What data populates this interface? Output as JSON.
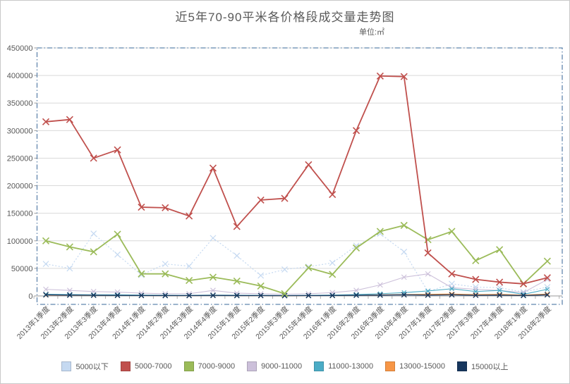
{
  "title": "近5年70-90平米各价格段成交量走势图",
  "subtitle": "单位:㎡",
  "colors": {
    "title_text": "#595959",
    "axis_text": "#595959",
    "gridline": "#d9d9d9",
    "axis_line": "#9a9a9a",
    "plot_border": "#6286ad",
    "background": "#ffffff"
  },
  "chart_data": {
    "type": "line",
    "marker": "x",
    "grid": "horizontal",
    "legend_position": "bottom",
    "ylim": [
      0,
      450000
    ],
    "y_ticks": [
      0,
      50000,
      100000,
      150000,
      200000,
      250000,
      300000,
      350000,
      400000,
      450000
    ],
    "categories": [
      "2013年1季度",
      "2013年2季度",
      "2013年3季度",
      "2013年4季度",
      "2014年1季度",
      "2014年2季度",
      "2014年3季度",
      "2014年4季度",
      "2015年1季度",
      "2015年2季度",
      "2015年3季度",
      "2015年4季度",
      "2016年1季度",
      "2016年2季度",
      "2016年3季度",
      "2016年4季度",
      "2017年1季度",
      "2017年2季度",
      "2017年3季度",
      "2017年4季度",
      "2018年1季度",
      "2018年2季度"
    ],
    "series": [
      {
        "name": "5000以下",
        "color": "#c5d9f1",
        "dash": "2 2.5",
        "line_width": 1.2,
        "marker_size": 4,
        "marker_width": 1.2,
        "values": [
          58000,
          50000,
          113000,
          75000,
          38000,
          58000,
          54000,
          105000,
          73000,
          37000,
          48000,
          53000,
          60000,
          91000,
          113000,
          80000,
          8000,
          22000,
          16000,
          15000,
          7000,
          16000
        ]
      },
      {
        "name": "5000-7000",
        "color": "#c0504d",
        "dash": "",
        "line_width": 1.8,
        "marker_size": 4.5,
        "marker_width": 1.6,
        "values": [
          316000,
          320000,
          250000,
          265000,
          161000,
          160000,
          145000,
          232000,
          126000,
          174000,
          177000,
          238000,
          184000,
          300000,
          399000,
          398000,
          78000,
          40000,
          30000,
          25000,
          22000,
          33000
        ]
      },
      {
        "name": "7000-9000",
        "color": "#9bbb59",
        "dash": "",
        "line_width": 1.8,
        "marker_size": 4.5,
        "marker_width": 1.6,
        "values": [
          100000,
          89000,
          80000,
          112000,
          40000,
          40000,
          28000,
          34000,
          27000,
          18000,
          4000,
          51000,
          39000,
          87000,
          117000,
          128000,
          102000,
          117000,
          64000,
          84000,
          22000,
          63000
        ]
      },
      {
        "name": "9000-11000",
        "color": "#ccc0da",
        "dash": "",
        "line_width": 1.1,
        "marker_size": 3.5,
        "marker_width": 1.1,
        "values": [
          12000,
          10000,
          8000,
          7000,
          5000,
          4000,
          4000,
          10000,
          5000,
          4000,
          3000,
          4000,
          6000,
          10000,
          20000,
          34000,
          40000,
          15000,
          12000,
          10000,
          6000,
          30000
        ]
      },
      {
        "name": "11000-13000",
        "color": "#4bacc6",
        "dash": "",
        "line_width": 1.1,
        "marker_size": 3,
        "marker_width": 1.1,
        "values": [
          3000,
          2500,
          2000,
          2000,
          1500,
          1200,
          1000,
          1500,
          1200,
          1000,
          800,
          1000,
          1500,
          2500,
          4000,
          6000,
          9000,
          13000,
          8000,
          10000,
          3000,
          12000
        ]
      },
      {
        "name": "13000-15000",
        "color": "#f79646",
        "dash": "",
        "line_width": 1.1,
        "marker_size": 3,
        "marker_width": 1.1,
        "values": [
          1500,
          1200,
          1000,
          800,
          700,
          600,
          500,
          800,
          600,
          500,
          400,
          500,
          800,
          1200,
          2000,
          2500,
          3000,
          3500,
          2500,
          3000,
          1500,
          3500
        ]
      },
      {
        "name": "15000以上",
        "color": "#17375e",
        "dash": "",
        "line_width": 1.3,
        "marker_size": 3.5,
        "marker_width": 1.4,
        "values": [
          2000,
          1500,
          1200,
          1000,
          800,
          700,
          600,
          1000,
          700,
          600,
          500,
          600,
          800,
          1200,
          1500,
          2000,
          1500,
          2000,
          1200,
          1500,
          800,
          2000
        ]
      }
    ]
  }
}
